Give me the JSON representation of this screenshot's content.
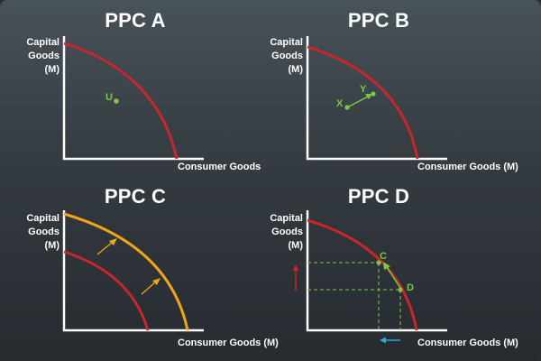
{
  "colors": {
    "axis": "#ffffff",
    "curve": "#c8262b",
    "curve_shifted": "#f2a515",
    "point": "#7ac943",
    "shift_arrow": "#f2a515",
    "up_arrow": "#c8262b",
    "left_arrow": "#29abe2",
    "guide": "#7ac943"
  },
  "panels": [
    {
      "title": "PPC A",
      "ylabel": [
        "Capital",
        "Goods",
        "(M)"
      ],
      "xlabel": "Consumer Goods",
      "points": [
        {
          "label": "U"
        }
      ]
    },
    {
      "title": "PPC B",
      "ylabel": [
        "Capital",
        "Goods",
        "(M)"
      ],
      "xlabel": "Consumer Goods (M)",
      "points": [
        {
          "label": "X"
        },
        {
          "label": "Y"
        }
      ]
    },
    {
      "title": "PPC C",
      "ylabel": [
        "Capital",
        "Goods",
        "(M)"
      ],
      "xlabel": "Consumer Goods (M)",
      "points": []
    },
    {
      "title": "PPC D",
      "ylabel": [
        "Capital",
        "Goods",
        "(M)"
      ],
      "xlabel": "Consumer Goods (M)",
      "points": [
        {
          "label": "C"
        },
        {
          "label": "D"
        }
      ]
    }
  ]
}
